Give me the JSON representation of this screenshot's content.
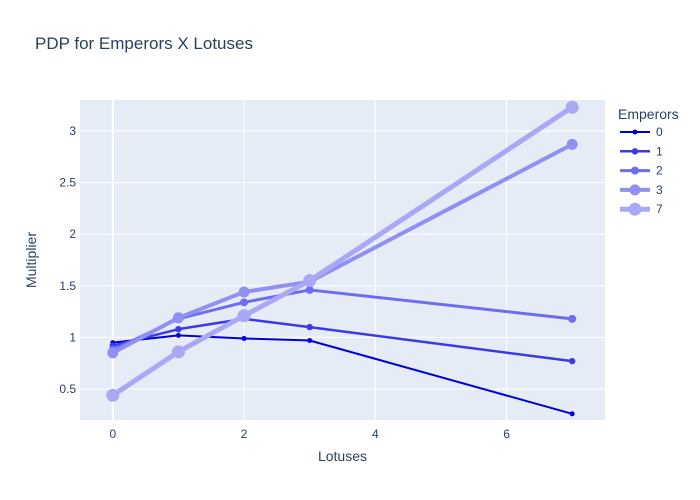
{
  "chart_data": {
    "type": "line",
    "title": "PDP for Emperors X Lotuses",
    "xlabel": "Lotuses",
    "ylabel": "Multiplier",
    "x": [
      0,
      1,
      2,
      3,
      7
    ],
    "xlim": [
      -0.5,
      7.5
    ],
    "ylim": [
      0.2,
      3.3
    ],
    "xticks": [
      0,
      2,
      4,
      6
    ],
    "xtick_labels": [
      "0",
      "2",
      "4",
      "6"
    ],
    "yticks": [
      0.5,
      1,
      1.5,
      2,
      2.5,
      3
    ],
    "ytick_labels": [
      "0.5",
      "1",
      "1.5",
      "2",
      "2.5",
      "3"
    ],
    "grid": true,
    "legend_title": "Emperors",
    "legend_position": "right",
    "plot_background": "#e5ecf6",
    "series": [
      {
        "name": "0",
        "color": "#0000dd",
        "values": [
          0.95,
          1.02,
          0.99,
          0.97,
          0.26
        ]
      },
      {
        "name": "1",
        "color": "#3a3ae8",
        "values": [
          0.92,
          1.08,
          1.18,
          1.1,
          0.77
        ]
      },
      {
        "name": "2",
        "color": "#6d6df0",
        "values": [
          0.88,
          1.18,
          1.34,
          1.46,
          1.18
        ]
      },
      {
        "name": "3",
        "color": "#9090f2",
        "values": [
          0.85,
          1.19,
          1.44,
          1.54,
          2.87
        ]
      },
      {
        "name": "7",
        "color": "#a8a8f5",
        "values": [
          0.44,
          0.86,
          1.21,
          1.55,
          3.23
        ]
      }
    ]
  }
}
